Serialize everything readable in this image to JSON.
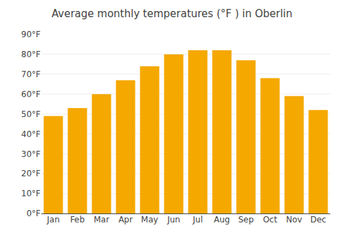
{
  "chart_data": {
    "type": "bar",
    "title": "Average monthly temperatures (°F ) in Oberlin",
    "categories": [
      "Jan",
      "Feb",
      "Mar",
      "Apr",
      "May",
      "Jun",
      "Jul",
      "Aug",
      "Sep",
      "Oct",
      "Nov",
      "Dec"
    ],
    "values": [
      49,
      53,
      60,
      67,
      74,
      80,
      82,
      82,
      77,
      68,
      59,
      52
    ],
    "color": "#F5A800",
    "ylim": [
      0,
      90
    ],
    "yticks": [
      {
        "value": 0,
        "label": "0°F"
      },
      {
        "value": 10,
        "label": "10°F"
      },
      {
        "value": 20,
        "label": "20°F"
      },
      {
        "value": 30,
        "label": "30°F"
      },
      {
        "value": 40,
        "label": "40°F"
      },
      {
        "value": 50,
        "label": "50°F"
      },
      {
        "value": 60,
        "label": "60°F"
      },
      {
        "value": 70,
        "label": "70°F"
      },
      {
        "value": 80,
        "label": "80°F"
      },
      {
        "value": 90,
        "label": "90°F"
      }
    ],
    "grid": true
  }
}
